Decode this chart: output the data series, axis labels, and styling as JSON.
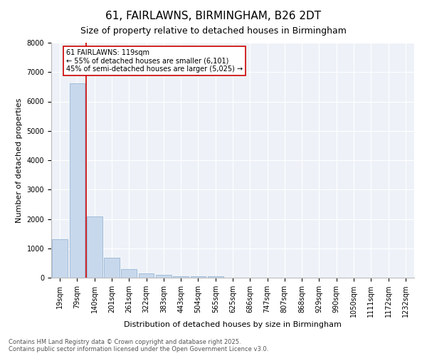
{
  "title": "61, FAIRLAWNS, BIRMINGHAM, B26 2DT",
  "subtitle": "Size of property relative to detached houses in Birmingham",
  "xlabel": "Distribution of detached houses by size in Birmingham",
  "ylabel": "Number of detached properties",
  "categories": [
    "19sqm",
    "79sqm",
    "140sqm",
    "201sqm",
    "261sqm",
    "322sqm",
    "383sqm",
    "443sqm",
    "504sqm",
    "565sqm",
    "625sqm",
    "686sqm",
    "747sqm",
    "807sqm",
    "868sqm",
    "929sqm",
    "990sqm",
    "1050sqm",
    "1111sqm",
    "1172sqm",
    "1232sqm"
  ],
  "values": [
    1310,
    6620,
    2090,
    670,
    300,
    140,
    90,
    50,
    50,
    50,
    0,
    0,
    0,
    0,
    0,
    0,
    0,
    0,
    0,
    0,
    0
  ],
  "bar_color": "#c8d8ec",
  "bar_edge_color": "#8aaed0",
  "vline_color": "#cc0000",
  "annotation_text": "61 FAIRLAWNS: 119sqm\n← 55% of detached houses are smaller (6,101)\n45% of semi-detached houses are larger (5,025) →",
  "annotation_box_color": "#cc0000",
  "ylim": [
    0,
    8000
  ],
  "yticks": [
    0,
    1000,
    2000,
    3000,
    4000,
    5000,
    6000,
    7000,
    8000
  ],
  "background_color": "#eef2f8",
  "grid_color": "#ffffff",
  "footer_text": "Contains HM Land Registry data © Crown copyright and database right 2025.\nContains public sector information licensed under the Open Government Licence v3.0.",
  "title_fontsize": 11,
  "subtitle_fontsize": 9,
  "axis_label_fontsize": 8,
  "tick_fontsize": 7,
  "annotation_fontsize": 7,
  "footer_fontsize": 6
}
